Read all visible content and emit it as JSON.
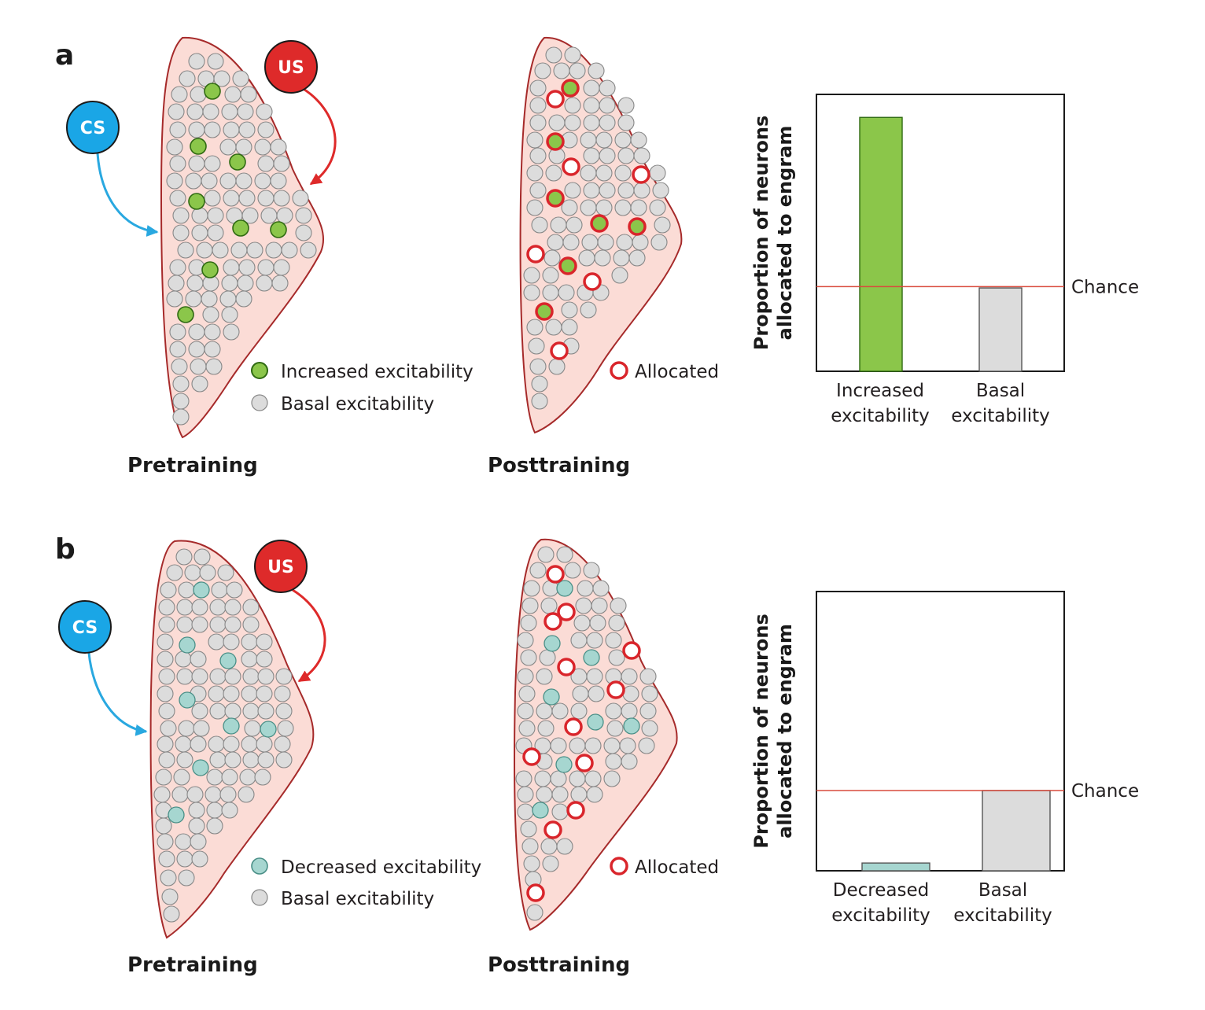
{
  "colors": {
    "tissue_fill": "#fbdcd6",
    "tissue_stroke": "#a62a2a",
    "basal": "#dcdcdc",
    "cell_stroke": "#888888",
    "increased": "#8bc64a",
    "increased_stroke": "#2f6a12",
    "decreased": "#a6d6d0",
    "decreased_stroke": "#4a8f87",
    "allocated": "#d9252b",
    "cs": "#1aa6e6",
    "cs_arrow": "#29a8e0",
    "us": "#de2a2a",
    "chance_line": "#d94b3d",
    "bar_border": "#555555"
  },
  "panel_a": {
    "letter": "a",
    "cs_label": "CS",
    "us_label": "US",
    "pre_caption": "Pretraining",
    "post_caption": "Posttraining",
    "legend_primary": "Increased excitability",
    "legend_basal": "Basal excitability",
    "legend_allocated": "Allocated"
  },
  "panel_b": {
    "letter": "b",
    "cs_label": "CS",
    "us_label": "US",
    "pre_caption": "Pretraining",
    "post_caption": "Posttraining",
    "legend_primary": "Decreased excitability",
    "legend_basal": "Basal excitability",
    "legend_allocated": "Allocated"
  },
  "chart_data": [
    {
      "type": "bar",
      "ylabel_line1": "Proportion of neurons",
      "ylabel_line2": "allocated to engram",
      "chance_label": "Chance",
      "chance": 0.33,
      "ylim": [
        0,
        1
      ],
      "grid": false,
      "categories": [
        {
          "line1": "Increased",
          "line2": "excitability",
          "value": 0.99,
          "color": "#8bc64a"
        },
        {
          "line1": "Basal",
          "line2": "excitability",
          "value": 0.325,
          "color": "#dcdcdc"
        }
      ]
    },
    {
      "type": "bar",
      "ylabel_line1": "Proportion of neurons",
      "ylabel_line2": "allocated to engram",
      "chance_label": "Chance",
      "chance": 0.31,
      "ylim": [
        0,
        1
      ],
      "grid": false,
      "categories": [
        {
          "line1": "Decreased",
          "line2": "excitability",
          "value": 0.03,
          "color": "#a6d6d0"
        },
        {
          "line1": "Basal",
          "line2": "excitability",
          "value": 0.31,
          "color": "#dcdcdc"
        }
      ]
    }
  ]
}
